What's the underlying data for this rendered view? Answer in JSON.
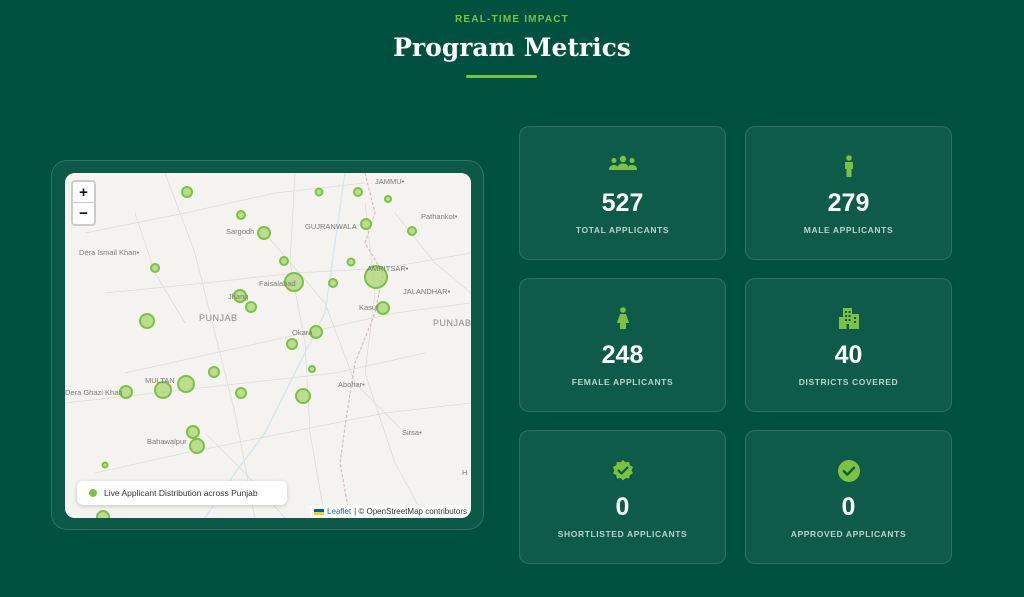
{
  "header": {
    "eyebrow": "REAL-TIME IMPACT",
    "title": "Program Metrics"
  },
  "map": {
    "zoom_in_label": "+",
    "zoom_out_label": "−",
    "legend_label": "Live Applicant Distribution across Punjab",
    "attribution_leaflet": "Leaflet",
    "attribution_osm": "| © OpenStreetMap contributors",
    "place_labels": {
      "jammu": "JAMMU•",
      "pathankot": "Pathankot•",
      "sargodha": "Sargodh",
      "gujranwala": "GUJRANWALA",
      "dera_ismail_khan": "Dera Ismail Khan•",
      "faisalabad": "Faisalabad",
      "amritsar": "AMRITSAR•",
      "jalandhar": "JALANDHAR•",
      "jhang": "Jhang",
      "kasur": "Kasur",
      "punjab_pk": "PUNJAB",
      "punjab_in": "PUNJAB",
      "okara": "Okara",
      "multan": "MULTAN",
      "dera_ghazi_khan": "Dera Ghazi Khan",
      "abohar": "Abohar•",
      "bahawalpur": "Bahawalpur",
      "sirsa": "Sirsa•",
      "h_edge": "H"
    },
    "marker_color": "#7cc242"
  },
  "stats": [
    {
      "icon": "users-icon",
      "value": "527",
      "label": "TOTAL APPLICANTS"
    },
    {
      "icon": "male-icon",
      "value": "279",
      "label": "MALE APPLICANTS"
    },
    {
      "icon": "female-icon",
      "value": "248",
      "label": "FEMALE APPLICANTS"
    },
    {
      "icon": "building-icon",
      "value": "40",
      "label": "DISTRICTS COVERED"
    },
    {
      "icon": "badge-check-icon",
      "value": "0",
      "label": "SHORTLISTED APPLICANTS"
    },
    {
      "icon": "circle-check-icon",
      "value": "0",
      "label": "APPROVED APPLICANTS"
    }
  ],
  "colors": {
    "background": "#00513f",
    "accent": "#7cc242",
    "card_label": "#b8d4c9"
  }
}
